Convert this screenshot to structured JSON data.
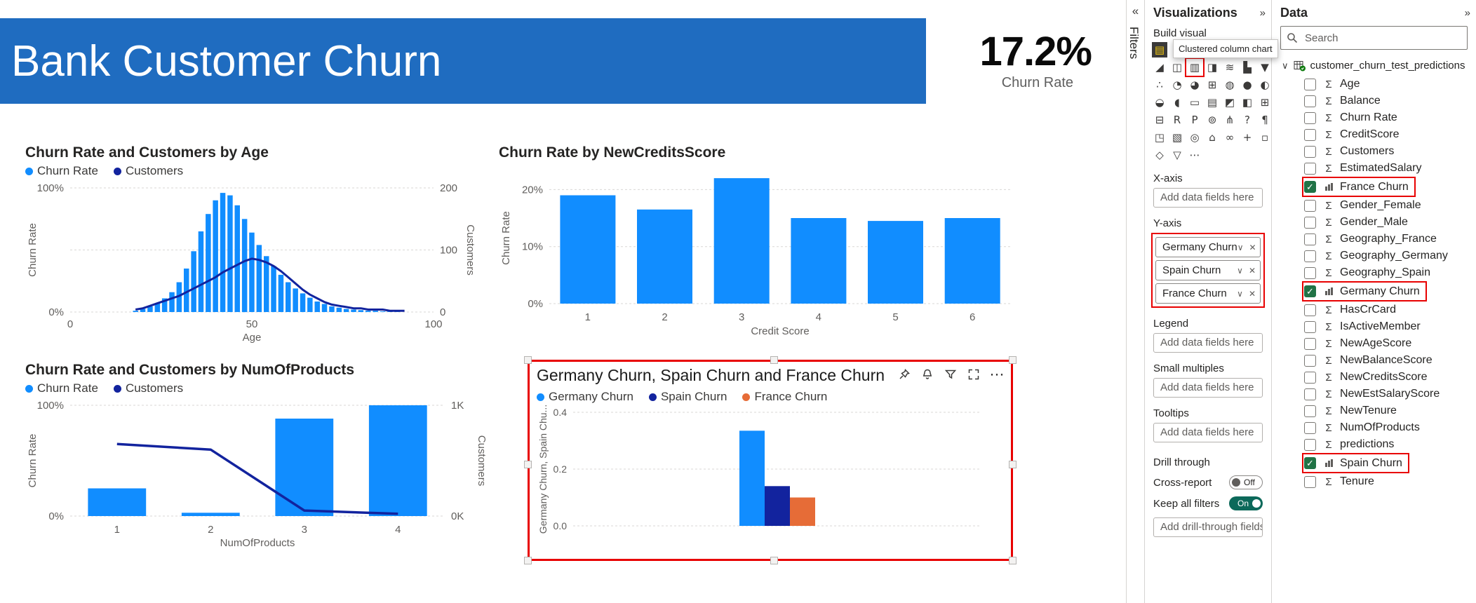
{
  "colors": {
    "blue": "#118DFF",
    "navy": "#12239E",
    "orange": "#E66C37",
    "banner_blue": "#1F6CC0",
    "annotation_red": "#E80000",
    "toggle_on": "#0C695A",
    "check_green": "#217346",
    "gridline": "#D9D7D5",
    "text_dark": "#252423",
    "text_secondary": "#605E5C"
  },
  "canvas": {
    "banner_title": "Bank Customer Churn",
    "kpi": {
      "value": "17.2%",
      "label": "Churn Rate"
    }
  },
  "chart_data": [
    {
      "id": "age",
      "type": "combo",
      "title": "Churn Rate and Customers by Age",
      "legend": [
        {
          "label": "Churn Rate",
          "color": "#118DFF"
        },
        {
          "label": "Customers",
          "color": "#12239E"
        }
      ],
      "xlabel": "Age",
      "x_ticks": [
        0,
        50,
        100
      ],
      "x": [
        18,
        20,
        22,
        24,
        26,
        28,
        30,
        32,
        34,
        36,
        38,
        40,
        42,
        44,
        46,
        48,
        50,
        52,
        54,
        56,
        58,
        60,
        62,
        64,
        66,
        68,
        70,
        72,
        74,
        76,
        78,
        80,
        82,
        84,
        86,
        88,
        90,
        92
      ],
      "bar_series": {
        "name": "Customers",
        "axis": "right",
        "values": [
          2,
          5,
          9,
          14,
          22,
          32,
          48,
          70,
          98,
          130,
          158,
          180,
          192,
          188,
          172,
          150,
          128,
          108,
          90,
          74,
          60,
          48,
          38,
          30,
          23,
          17,
          13,
          9,
          7,
          5,
          4,
          3,
          2,
          2,
          1,
          1,
          1,
          0
        ]
      },
      "line_series": {
        "name": "Churn Rate",
        "axis": "left",
        "values": [
          0.02,
          0.03,
          0.05,
          0.07,
          0.09,
          0.11,
          0.13,
          0.16,
          0.19,
          0.22,
          0.25,
          0.28,
          0.32,
          0.35,
          0.38,
          0.41,
          0.43,
          0.42,
          0.4,
          0.37,
          0.33,
          0.28,
          0.23,
          0.18,
          0.14,
          0.11,
          0.08,
          0.06,
          0.05,
          0.04,
          0.03,
          0.03,
          0.02,
          0.02,
          0.02,
          0.01,
          0.01,
          0.01
        ]
      },
      "left_axis": {
        "label": "Churn Rate",
        "max": 1,
        "ticks": [
          {
            "v": 0,
            "t": "0%"
          },
          {
            "v": 1,
            "t": "100%"
          }
        ]
      },
      "right_axis": {
        "label": "Customers",
        "max": 200,
        "ticks": [
          {
            "v": 0,
            "t": "0"
          },
          {
            "v": 100,
            "t": "100"
          },
          {
            "v": 200,
            "t": "200"
          }
        ]
      }
    },
    {
      "id": "credit",
      "type": "bar",
      "title": "Churn Rate by NewCreditsScore",
      "categories": [
        "1",
        "2",
        "3",
        "4",
        "5",
        "6"
      ],
      "values": [
        0.19,
        0.165,
        0.22,
        0.15,
        0.145,
        0.15
      ],
      "xlabel": "Credit Score",
      "left_axis": {
        "label": "Churn Rate",
        "max": 0.23,
        "ticks": [
          {
            "v": 0,
            "t": "0%"
          },
          {
            "v": 0.1,
            "t": "10%"
          },
          {
            "v": 0.2,
            "t": "20%"
          }
        ]
      }
    },
    {
      "id": "products",
      "type": "combo",
      "title": "Churn Rate and Customers by NumOfProducts",
      "legend": [
        {
          "label": "Churn Rate",
          "color": "#118DFF"
        },
        {
          "label": "Customers",
          "color": "#12239E"
        }
      ],
      "categories": [
        "1",
        "2",
        "3",
        "4"
      ],
      "bar_values": [
        0.25,
        0.03,
        0.88,
        1.0
      ],
      "line_values": [
        650,
        600,
        50,
        20
      ],
      "xlabel": "NumOfProducts",
      "left_axis": {
        "label": "Churn Rate",
        "max": 1,
        "ticks": [
          {
            "v": 0,
            "t": "0%"
          },
          {
            "v": 1,
            "t": "100%"
          }
        ]
      },
      "right_axis": {
        "label": "Customers",
        "max": 1000,
        "ticks": [
          {
            "v": 0,
            "t": "0K"
          },
          {
            "v": 1000,
            "t": "1K"
          }
        ]
      }
    },
    {
      "id": "geo",
      "type": "clustered_column",
      "title": "Germany Churn, Spain Churn and France Churn",
      "legend": [
        {
          "label": "Germany Churn",
          "color": "#118DFF"
        },
        {
          "label": "Spain Churn",
          "color": "#12239E"
        },
        {
          "label": "France Churn",
          "color": "#E66C37"
        }
      ],
      "values": [
        0.335,
        0.14,
        0.1
      ],
      "ylabel": "Germany Churn, Spain Chu...",
      "left_axis": {
        "max": 0.4,
        "ticks": [
          {
            "v": 0,
            "t": "0.0"
          },
          {
            "v": 0.2,
            "t": "0.2"
          },
          {
            "v": 0.4,
            "t": "0.4"
          }
        ]
      }
    }
  ],
  "filters_panel": {
    "title": "Filters",
    "collapse_icon": "«"
  },
  "visualizations_panel": {
    "title": "Visualizations",
    "collapse_icon": "»",
    "build_visual_label": "Build visual",
    "tooltip": "Clustered column chart",
    "icons": [
      {
        "name": "stacked-bar-chart-icon",
        "glyph": "▤",
        "selected": true
      },
      {
        "name": "stacked-column-chart-icon",
        "glyph": "▥"
      },
      {
        "name": "clustered-bar-chart-icon",
        "glyph": "▤"
      },
      {
        "name": "100-stacked-bar-chart-icon",
        "glyph": "▦"
      },
      {
        "name": "100-stacked-column-chart-icon",
        "glyph": "▩"
      },
      {
        "name": "line-chart-icon",
        "glyph": "∿"
      },
      {
        "name": "area-chart-icon",
        "glyph": "◣"
      },
      {
        "name": "stacked-area-chart-icon",
        "glyph": "◢"
      },
      {
        "name": "line-and-stacked-column-chart-icon",
        "glyph": "◫"
      },
      {
        "name": "clustered-column-chart-icon",
        "glyph": "▥",
        "boxed": true
      },
      {
        "name": "line-and-clustered-column-chart-icon",
        "glyph": "◨"
      },
      {
        "name": "ribbon-chart-icon",
        "glyph": "≋"
      },
      {
        "name": "waterfall-chart-icon",
        "glyph": "▙"
      },
      {
        "name": "funnel-chart-icon",
        "glyph": "▼"
      },
      {
        "name": "scatter-chart-icon",
        "glyph": "∴"
      },
      {
        "name": "pie-chart-icon",
        "glyph": "◔"
      },
      {
        "name": "donut-chart-icon",
        "glyph": "◕"
      },
      {
        "name": "treemap-icon",
        "glyph": "⊞"
      },
      {
        "name": "map-icon",
        "glyph": "◍"
      },
      {
        "name": "filled-map-icon",
        "glyph": "●"
      },
      {
        "name": "shape-map-icon",
        "glyph": "◐"
      },
      {
        "name": "azure-map-icon",
        "glyph": "◒"
      },
      {
        "name": "gauge-icon",
        "glyph": "◖"
      },
      {
        "name": "card-icon",
        "glyph": "▭"
      },
      {
        "name": "multi-row-card-icon",
        "glyph": "▤"
      },
      {
        "name": "kpi-icon",
        "glyph": "◩"
      },
      {
        "name": "slicer-icon",
        "glyph": "◧"
      },
      {
        "name": "table-icon",
        "glyph": "⊞"
      },
      {
        "name": "matrix-icon",
        "glyph": "⊟"
      },
      {
        "name": "r-script-icon",
        "glyph": "R"
      },
      {
        "name": "python-script-icon",
        "glyph": "P"
      },
      {
        "name": "key-influencers-icon",
        "glyph": "⊚"
      },
      {
        "name": "decomposition-tree-icon",
        "glyph": "⋔"
      },
      {
        "name": "qa-icon",
        "glyph": "?"
      },
      {
        "name": "smart-narrative-icon",
        "glyph": "¶"
      },
      {
        "name": "metrics-icon",
        "glyph": "◳"
      },
      {
        "name": "paginated-report-icon",
        "glyph": "▧"
      },
      {
        "name": "arcgis-map-icon",
        "glyph": "◎"
      },
      {
        "name": "power-apps-icon",
        "glyph": "⌂"
      },
      {
        "name": "power-automate-icon",
        "glyph": "∞"
      },
      {
        "name": "get-more-visuals-icon",
        "glyph": "+"
      },
      {
        "name": "button-icon",
        "glyph": "▫"
      },
      {
        "name": "shape-icon",
        "glyph": "◇"
      },
      {
        "name": "image-icon",
        "glyph": "▽"
      },
      {
        "name": "more-options-icon",
        "glyph": "⋯"
      }
    ],
    "sections": {
      "x_axis": {
        "label": "X-axis",
        "placeholder": "Add data fields here"
      },
      "y_axis": {
        "label": "Y-axis",
        "fields": [
          "Germany Churn",
          "Spain Churn",
          "France Churn"
        ]
      },
      "legend": {
        "label": "Legend",
        "placeholder": "Add data fields here"
      },
      "small_multiples": {
        "label": "Small multiples",
        "placeholder": "Add data fields here"
      },
      "tooltips": {
        "label": "Tooltips",
        "placeholder": "Add data fields here"
      },
      "drill_through": {
        "label": "Drill through",
        "cross_report": {
          "label": "Cross-report",
          "state": "Off"
        },
        "keep_all_filters": {
          "label": "Keep all filters",
          "state": "On"
        },
        "placeholder": "Add drill-through fields here"
      }
    }
  },
  "data_panel": {
    "title": "Data",
    "collapse_icon": "»",
    "search_placeholder": "Search",
    "table_name": "customer_churn_test_predictions",
    "fields": [
      {
        "name": "Age"
      },
      {
        "name": "Balance"
      },
      {
        "name": "Churn Rate"
      },
      {
        "name": "CreditScore"
      },
      {
        "name": "Customers"
      },
      {
        "name": "EstimatedSalary"
      },
      {
        "name": "France Churn",
        "checked": true,
        "boxed": true
      },
      {
        "name": "Gender_Female"
      },
      {
        "name": "Gender_Male"
      },
      {
        "name": "Geography_France"
      },
      {
        "name": "Geography_Germany"
      },
      {
        "name": "Geography_Spain"
      },
      {
        "name": "Germany Churn",
        "checked": true,
        "boxed": true
      },
      {
        "name": "HasCrCard"
      },
      {
        "name": "IsActiveMember"
      },
      {
        "name": "NewAgeScore"
      },
      {
        "name": "NewBalanceScore"
      },
      {
        "name": "NewCreditsScore"
      },
      {
        "name": "NewEstSalaryScore"
      },
      {
        "name": "NewTenure"
      },
      {
        "name": "NumOfProducts"
      },
      {
        "name": "predictions"
      },
      {
        "name": "Spain Churn",
        "checked": true,
        "boxed": true
      },
      {
        "name": "Tenure"
      }
    ]
  },
  "selected_visual_toolbar": [
    "pin",
    "alerts",
    "filter",
    "focus-mode",
    "more-options"
  ]
}
